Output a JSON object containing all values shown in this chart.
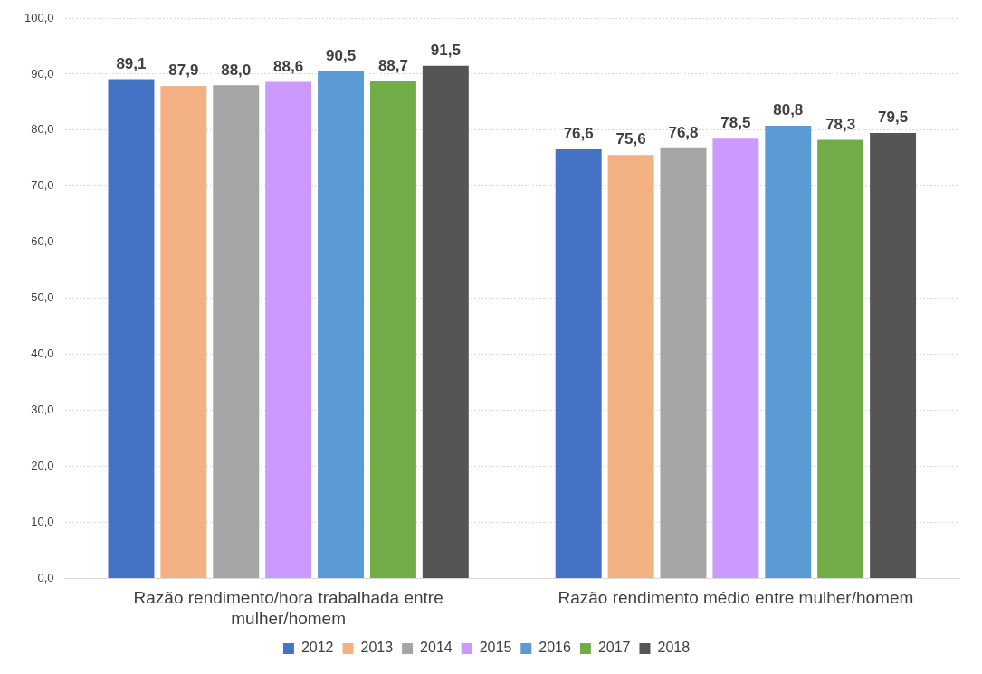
{
  "chart_data": {
    "type": "bar",
    "categories": [
      "Razão rendimento/hora trabalhada entre mulher/homem",
      "Razão rendimento médio entre mulher/homem"
    ],
    "series": [
      {
        "name": "2012",
        "color": "#4472c4",
        "values": [
          89.1,
          76.6
        ],
        "value_labels": [
          "89,1",
          "76,6"
        ]
      },
      {
        "name": "2013",
        "color": "#f4b183",
        "values": [
          87.9,
          75.6
        ],
        "value_labels": [
          "87,9",
          "75,6"
        ]
      },
      {
        "name": "2014",
        "color": "#a5a5a5",
        "values": [
          88.0,
          76.8
        ],
        "value_labels": [
          "88,0",
          "76,8"
        ]
      },
      {
        "name": "2015",
        "color": "#cc99ff",
        "values": [
          88.6,
          78.5
        ],
        "value_labels": [
          "88,6",
          "78,5"
        ]
      },
      {
        "name": "2016",
        "color": "#5b9bd5",
        "values": [
          90.5,
          80.8
        ],
        "value_labels": [
          "90,5",
          "80,8"
        ]
      },
      {
        "name": "2017",
        "color": "#70ad47",
        "values": [
          88.7,
          78.3
        ],
        "value_labels": [
          "88,7",
          "78,3"
        ]
      },
      {
        "name": "2018",
        "color": "#555555",
        "values": [
          91.5,
          79.5
        ],
        "value_labels": [
          "91,5",
          "79,5"
        ]
      }
    ],
    "ylim": [
      0,
      100
    ],
    "yticks": [
      {
        "value": 0,
        "label": "0,0"
      },
      {
        "value": 10,
        "label": "10,0"
      },
      {
        "value": 20,
        "label": "20,0"
      },
      {
        "value": 30,
        "label": "30,0"
      },
      {
        "value": 40,
        "label": "40,0"
      },
      {
        "value": 50,
        "label": "50,0"
      },
      {
        "value": 60,
        "label": "60,0"
      },
      {
        "value": 70,
        "label": "70,0"
      },
      {
        "value": 80,
        "label": "80,0"
      },
      {
        "value": 90,
        "label": "90,0"
      },
      {
        "value": 100,
        "label": "100,0"
      }
    ],
    "grid": "y",
    "legend": "bottom"
  }
}
